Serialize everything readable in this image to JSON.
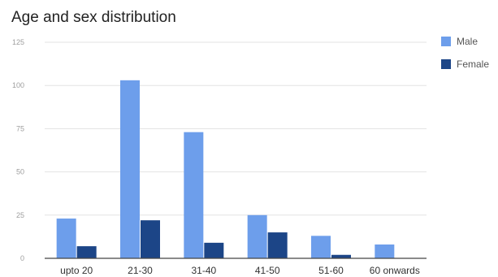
{
  "chart_data": {
    "type": "bar",
    "title": "Age and sex distribution",
    "xlabel": "",
    "ylabel": "",
    "categories": [
      "upto 20",
      "21-30",
      "31-40",
      "41-50",
      "51-60",
      "60 onwards"
    ],
    "series": [
      {
        "name": "Male",
        "color": "#6d9eeb",
        "values": [
          23,
          103,
          73,
          25,
          13,
          8
        ]
      },
      {
        "name": "Female",
        "color": "#1c4587",
        "values": [
          7,
          22,
          9,
          15,
          2,
          0
        ]
      }
    ],
    "ylim": [
      0,
      125
    ],
    "yticks": [
      "0",
      "25",
      "50",
      "75",
      "100",
      "125"
    ],
    "grid": true,
    "legend_position": "right"
  }
}
